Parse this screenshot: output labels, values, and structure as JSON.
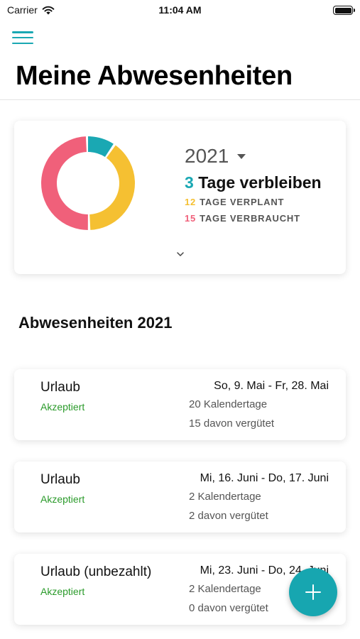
{
  "status_bar": {
    "carrier": "Carrier",
    "time": "11:04 AM"
  },
  "header": {
    "title": "Meine Abwesenheiten",
    "menu_icon": "hamburger-icon",
    "accent_color": "#1aa8b3"
  },
  "summary": {
    "year": "2021",
    "remaining_days": "3",
    "remaining_label": "Tage verbleiben",
    "planned_days": "12",
    "planned_label": "TAGE VERPLANT",
    "used_days": "15",
    "used_label": "TAGE VERBRAUCHT",
    "colors": {
      "remaining": "#1aa8b3",
      "planned": "#f5c032",
      "used": "#f0607a"
    }
  },
  "section": {
    "title": "Abwesenheiten 2021"
  },
  "absences": [
    {
      "type": "Urlaub",
      "status": "Akzeptiert",
      "range": "So, 9. Mai - Fr, 28. Mai",
      "days": "20 Kalendertage",
      "paid": "15 davon vergütet"
    },
    {
      "type": "Urlaub",
      "status": "Akzeptiert",
      "range": "Mi, 16. Juni - Do, 17. Juni",
      "days": "2 Kalendertage",
      "paid": "2 davon vergütet"
    },
    {
      "type": "Urlaub (unbezahlt)",
      "status": "Akzeptiert",
      "range": "Mi, 23. Juni - Do, 24. Juni",
      "days": "2 Kalendertage",
      "paid": "0 davon vergütet"
    }
  ],
  "fab": {
    "icon": "plus-icon"
  }
}
